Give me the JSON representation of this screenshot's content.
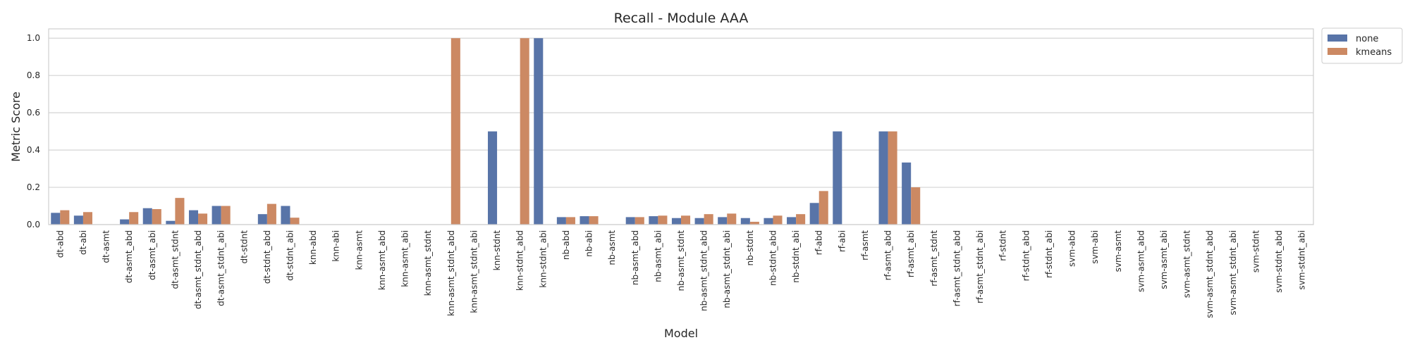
{
  "chart_data": {
    "type": "bar",
    "title": "Recall - Module AAA",
    "xlabel": "Model",
    "ylabel": "Metric Score",
    "ylim": [
      0,
      1.05
    ],
    "yticks": [
      "0.0",
      "0.2",
      "0.4",
      "0.6",
      "0.8",
      "1.0"
    ],
    "grid": true,
    "legend_position": "outside-top-right",
    "categories": [
      "dt-abd",
      "dt-abi",
      "dt-asmt",
      "dt-asmt_abd",
      "dt-asmt_abi",
      "dt-asmt_stdnt",
      "dt-asmt_stdnt_abd",
      "dt-asmt_stdnt_abi",
      "dt-stdnt",
      "dt-stdnt_abd",
      "dt-stdnt_abi",
      "knn-abd",
      "knn-abi",
      "knn-asmt",
      "knn-asmt_abd",
      "knn-asmt_abi",
      "knn-asmt_stdnt",
      "knn-asmt_stdnt_abd",
      "knn-asmt_stdnt_abi",
      "knn-stdnt",
      "knn-stdnt_abd",
      "knn-stdnt_abi",
      "nb-abd",
      "nb-abi",
      "nb-asmt",
      "nb-asmt_abd",
      "nb-asmt_abi",
      "nb-asmt_stdnt",
      "nb-asmt_stdnt_abd",
      "nb-asmt_stdnt_abi",
      "nb-stdnt",
      "nb-stdnt_abd",
      "nb-stdnt_abi",
      "rf-abd",
      "rf-abi",
      "rf-asmt",
      "rf-asmt_abd",
      "rf-asmt_abi",
      "rf-asmt_stdnt",
      "rf-asmt_stdnt_abd",
      "rf-asmt_stdnt_abi",
      "rf-stdnt",
      "rf-stdnt_abd",
      "rf-stdnt_abi",
      "svm-abd",
      "svm-abi",
      "svm-asmt",
      "svm-asmt_abd",
      "svm-asmt_abi",
      "svm-asmt_stdnt",
      "svm-asmt_stdnt_abd",
      "svm-asmt_stdnt_abi",
      "svm-stdnt",
      "svm-stdnt_abd",
      "svm-stdnt_abi"
    ],
    "series": [
      {
        "name": "none",
        "color": "#5874a8",
        "values": [
          0.063,
          0.048,
          0,
          0.028,
          0.088,
          0.02,
          0.077,
          0.1,
          0,
          0.056,
          0.1,
          0,
          0,
          0,
          0,
          0,
          0,
          0,
          0,
          0.5,
          0,
          1.0,
          0.04,
          0.045,
          0,
          0.04,
          0.045,
          0.035,
          0.035,
          0.04,
          0.035,
          0.035,
          0.04,
          0.116,
          0.5,
          0,
          0.5,
          0.333,
          0,
          0,
          0,
          0,
          0,
          0,
          0,
          0,
          0,
          0,
          0,
          0,
          0,
          0,
          0,
          0,
          0
        ]
      },
      {
        "name": "kmeans",
        "color": "#cc8963",
        "values": [
          0.077,
          0.067,
          0,
          0.067,
          0.083,
          0.143,
          0.059,
          0.1,
          0,
          0.111,
          0.037,
          0,
          0,
          0,
          0,
          0,
          0,
          1.0,
          0,
          0,
          1.0,
          0,
          0.04,
          0.045,
          0,
          0.04,
          0.048,
          0.048,
          0.056,
          0.059,
          0.015,
          0.048,
          0.056,
          0.18,
          0,
          0,
          0.5,
          0.2,
          0,
          0,
          0,
          0,
          0,
          0,
          0,
          0,
          0,
          0,
          0,
          0,
          0,
          0,
          0,
          0,
          0
        ]
      }
    ]
  }
}
